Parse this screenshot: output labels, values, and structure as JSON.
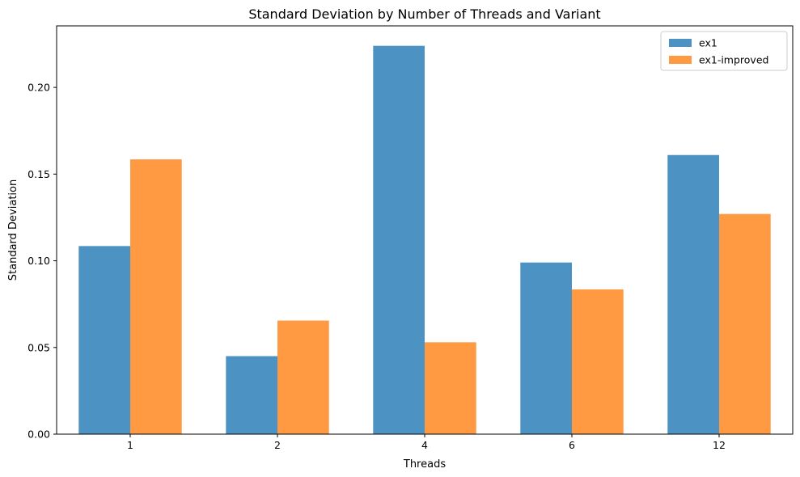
{
  "chart_data": {
    "type": "bar",
    "title": "Standard Deviation by Number of Threads and Variant",
    "xlabel": "Threads",
    "ylabel": "Standard Deviation",
    "categories": [
      "1",
      "2",
      "4",
      "6",
      "12"
    ],
    "series": [
      {
        "name": "ex1",
        "values": [
          0.1085,
          0.045,
          0.224,
          0.099,
          0.161
        ],
        "color": "#4C93C3"
      },
      {
        "name": "ex1-improved",
        "values": [
          0.1585,
          0.0655,
          0.053,
          0.0835,
          0.127
        ],
        "color": "#FF9942"
      }
    ],
    "ylim": [
      0,
      0.2355
    ],
    "yticks": [
      0.0,
      0.05,
      0.1,
      0.15,
      0.2
    ],
    "ytick_labels": [
      "0.00",
      "0.05",
      "0.10",
      "0.15",
      "0.20"
    ],
    "grid": false,
    "legend_position": "top-right"
  }
}
